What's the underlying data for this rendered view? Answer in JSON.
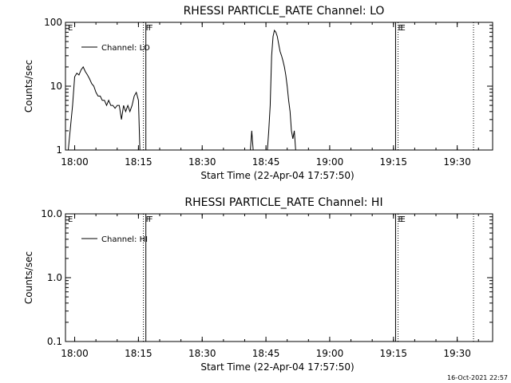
{
  "footer": {
    "timestamp": "16-Oct-2021 22:57"
  },
  "chart_data": [
    {
      "type": "line",
      "title": "RHESSI PARTICLE_RATE Channel: LO",
      "xlabel": "Start Time (22-Apr-04 17:57:50)",
      "ylabel": "Counts/sec",
      "y_scale": "log",
      "xlim": [
        "17:57:50",
        "19:38:20"
      ],
      "ylim": [
        1,
        100
      ],
      "x_ticks": [
        "18:00",
        "18:15",
        "18:30",
        "18:45",
        "19:00",
        "19:15",
        "19:30"
      ],
      "y_ticks": [
        "1",
        "10",
        "100"
      ],
      "legend": {
        "position": "top-left",
        "entries": [
          "Channel: LO"
        ]
      },
      "markers": [
        {
          "label": "E",
          "time": "17:57:50",
          "style": "solid"
        },
        {
          "label": "F",
          "time": "18:16:10",
          "style": "dotted"
        },
        {
          "label": "F",
          "time": "18:16:45",
          "style": "solid"
        },
        {
          "label": "E",
          "time": "19:15:30",
          "style": "solid"
        },
        {
          "label": "E",
          "time": "19:16:05",
          "style": "dotted"
        },
        {
          "label": "",
          "time": "19:33:50",
          "style": "dotted"
        }
      ],
      "series": [
        {
          "name": "Channel: LO",
          "segments": [
            {
              "x": [
                "17:58:30",
                "17:59:30",
                "18:00:00",
                "18:00:30",
                "18:01:00",
                "18:01:30",
                "18:02:00",
                "18:02:30",
                "18:03:00",
                "18:03:30",
                "18:04:00",
                "18:04:30",
                "18:05:00",
                "18:05:30",
                "18:06:00",
                "18:06:30",
                "18:07:00",
                "18:07:30",
                "18:08:00",
                "18:08:30",
                "18:09:00",
                "18:09:30",
                "18:10:00",
                "18:10:30",
                "18:11:00",
                "18:11:30",
                "18:12:00",
                "18:12:30",
                "18:13:00",
                "18:13:30",
                "18:14:00",
                "18:14:30",
                "18:15:00",
                "18:15:20"
              ],
              "y": [
                1,
                5,
                14,
                16,
                15,
                18,
                20,
                17,
                15,
                13,
                11,
                10,
                8,
                7,
                7,
                6,
                6,
                5,
                6,
                5,
                5,
                4.5,
                5,
                5,
                3,
                5,
                4,
                5,
                4,
                5,
                7,
                8,
                6,
                1
              ]
            },
            {
              "x": [
                "18:41:20",
                "18:41:40",
                "18:42:00",
                "18:45:20",
                "18:45:40",
                "18:46:00",
                "18:46:20",
                "18:46:40",
                "18:47:00",
                "18:47:20",
                "18:47:40",
                "18:48:00",
                "18:48:20",
                "18:48:40",
                "18:49:00",
                "18:49:20",
                "18:49:40",
                "18:50:00",
                "18:50:20",
                "18:50:40",
                "18:51:00",
                "18:51:20",
                "18:51:40",
                "18:52:00"
              ],
              "y": [
                1,
                2,
                1,
                1,
                2,
                5,
                30,
                60,
                75,
                70,
                60,
                45,
                35,
                30,
                25,
                20,
                15,
                10,
                6,
                4,
                2,
                1.5,
                2,
                1
              ]
            }
          ]
        }
      ]
    },
    {
      "type": "line",
      "title": "RHESSI PARTICLE_RATE Channel: HI",
      "xlabel": "Start Time (22-Apr-04 17:57:50)",
      "ylabel": "Counts/sec",
      "y_scale": "log",
      "xlim": [
        "17:57:50",
        "19:38:20"
      ],
      "ylim": [
        0.1,
        10
      ],
      "x_ticks": [
        "18:00",
        "18:15",
        "18:30",
        "18:45",
        "19:00",
        "19:15",
        "19:30"
      ],
      "y_ticks": [
        "0.1",
        "1.0",
        "10.0"
      ],
      "legend": {
        "position": "top-left",
        "entries": [
          "Channel: HI"
        ]
      },
      "markers": [
        {
          "label": "E",
          "time": "17:57:50",
          "style": "solid"
        },
        {
          "label": "F",
          "time": "18:16:10",
          "style": "dotted"
        },
        {
          "label": "F",
          "time": "18:16:45",
          "style": "solid"
        },
        {
          "label": "E",
          "time": "19:15:30",
          "style": "solid"
        },
        {
          "label": "E",
          "time": "19:16:05",
          "style": "dotted"
        },
        {
          "label": "",
          "time": "19:33:50",
          "style": "dotted"
        }
      ],
      "series": [
        {
          "name": "Channel: HI",
          "segments": []
        }
      ]
    }
  ]
}
